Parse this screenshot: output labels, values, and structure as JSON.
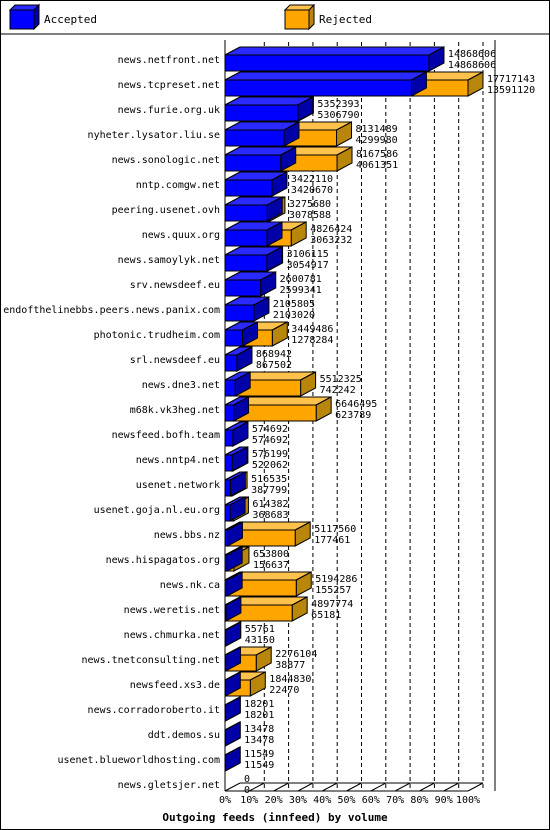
{
  "chart_data": {
    "type": "bar",
    "title": "Outgoing feeds (innfeed) by volume",
    "legend": [
      {
        "name": "Accepted",
        "color": "#0000ff"
      },
      {
        "name": "Rejected",
        "color": "#ffa500"
      }
    ],
    "legend_position": "top",
    "xaxis_ticks": [
      "0%",
      "10%",
      "20%",
      "30%",
      "40%",
      "50%",
      "60%",
      "70%",
      "80%",
      "90%",
      "100%"
    ],
    "xlim": [
      0,
      100
    ],
    "grid": true,
    "rows": [
      {
        "name": "news.netfront.net",
        "total": 14868606,
        "accepted": 14868606
      },
      {
        "name": "news.tcpreset.net",
        "total": 17717143,
        "accepted": 13591120
      },
      {
        "name": "news.furie.org.uk",
        "total": 5352393,
        "accepted": 5306790
      },
      {
        "name": "nyheter.lysator.liu.se",
        "total": 8131489,
        "accepted": 4299980
      },
      {
        "name": "news.sonologic.net",
        "total": 8167586,
        "accepted": 4061351
      },
      {
        "name": "nntp.comgw.net",
        "total": 3422110,
        "accepted": 3420670
      },
      {
        "name": "peering.usenet.ovh",
        "total": 3275680,
        "accepted": 3078588
      },
      {
        "name": "news.quux.org",
        "total": 4826424,
        "accepted": 3063232
      },
      {
        "name": "news.samoylyk.net",
        "total": 3106115,
        "accepted": 3054917
      },
      {
        "name": "srv.newsdeef.eu",
        "total": 2600781,
        "accepted": 2599341
      },
      {
        "name": "endofthelinebbs.peers.news.panix.com",
        "total": 2105805,
        "accepted": 2103020
      },
      {
        "name": "photonic.trudheim.com",
        "total": 3449486,
        "accepted": 1278284
      },
      {
        "name": "srl.newsdeef.eu",
        "total": 868942,
        "accepted": 867502
      },
      {
        "name": "news.dne3.net",
        "total": 5512325,
        "accepted": 742242
      },
      {
        "name": "m68k.vk3heg.net",
        "total": 6646495,
        "accepted": 623789
      },
      {
        "name": "newsfeed.bofh.team",
        "total": 574692,
        "accepted": 574692
      },
      {
        "name": "news.nntp4.net",
        "total": 576199,
        "accepted": 522062
      },
      {
        "name": "usenet.network",
        "total": 516535,
        "accepted": 387799
      },
      {
        "name": "usenet.goja.nl.eu.org",
        "total": 614382,
        "accepted": 368683
      },
      {
        "name": "news.bbs.nz",
        "total": 5117560,
        "accepted": 177461
      },
      {
        "name": "news.hispagatos.org",
        "total": 653800,
        "accepted": 156637
      },
      {
        "name": "news.nk.ca",
        "total": 5194286,
        "accepted": 155257
      },
      {
        "name": "news.weretis.net",
        "total": 4897774,
        "accepted": 65181
      },
      {
        "name": "news.chmurka.net",
        "total": 55761,
        "accepted": 43150
      },
      {
        "name": "news.tnetconsulting.net",
        "total": 2276104,
        "accepted": 38877
      },
      {
        "name": "newsfeed.xs3.de",
        "total": 1844830,
        "accepted": 22470
      },
      {
        "name": "news.corradoroberto.it",
        "total": 18201,
        "accepted": 18201
      },
      {
        "name": "ddt.demos.su",
        "total": 13478,
        "accepted": 13478
      },
      {
        "name": "usenet.blueworldhosting.com",
        "total": 11549,
        "accepted": 11549
      },
      {
        "name": "news.gletsjer.net",
        "total": 0,
        "accepted": 0
      }
    ]
  }
}
